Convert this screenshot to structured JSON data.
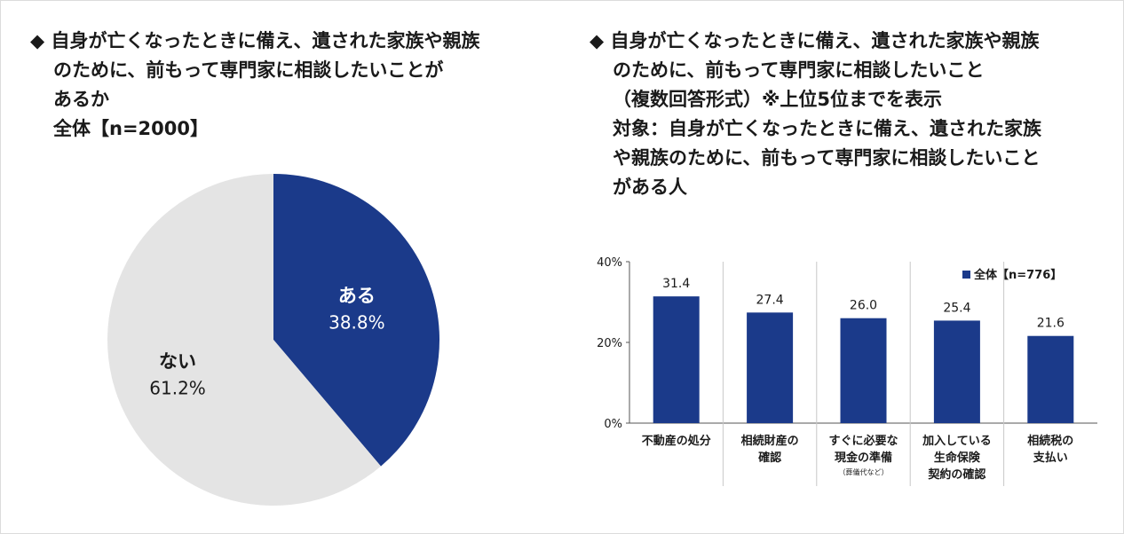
{
  "left_panel": {
    "title_lines": [
      "◆ 自身が亡くなったときに備え、遺された家族や親族",
      "のために、前もって専門家に相談したいことが",
      "あるか",
      "全体【n=2000】"
    ]
  },
  "right_panel": {
    "title_lines": [
      "◆ 自身が亡くなったときに備え、遺された家族や親族",
      "のために、前もって専門家に相談したいこと",
      "（複数回答形式）※上位5位までを表示",
      "対象：自身が亡くなったときに備え、遺された家族",
      "や親族のために、前もって専門家に相談したいこと",
      "がある人"
    ]
  },
  "colors": {
    "navy": "#1b3a8a",
    "gray": "#e4e4e4"
  },
  "chart_data": [
    {
      "type": "pie",
      "labels": [
        "ある",
        "ない"
      ],
      "values": [
        38.8,
        61.2
      ],
      "value_labels": [
        "38.8%",
        "61.2%"
      ],
      "colors": [
        "#1b3a8a",
        "#e4e4e4"
      ]
    },
    {
      "type": "bar",
      "categories": [
        [
          "不動産の処分"
        ],
        [
          "相続財産の",
          "確認"
        ],
        [
          "すぐに必要な",
          "現金の準備"
        ],
        [
          "加入している",
          "生命保険",
          "契約の確認"
        ],
        [
          "相続税の",
          "支払い"
        ]
      ],
      "category_notes": [
        "",
        "",
        "（葬儀代など）",
        "",
        ""
      ],
      "series": [
        {
          "name": "全体【n=776】",
          "values": [
            31.4,
            27.4,
            26.0,
            25.4,
            21.6
          ]
        }
      ],
      "value_labels": [
        "31.4",
        "27.4",
        "26.0",
        "25.4",
        "21.6"
      ],
      "y_ticks": [
        "40%",
        "20%",
        "0%"
      ],
      "ylim": [
        0,
        40
      ],
      "legend_position": "top-right",
      "color": "#1b3a8a"
    }
  ]
}
